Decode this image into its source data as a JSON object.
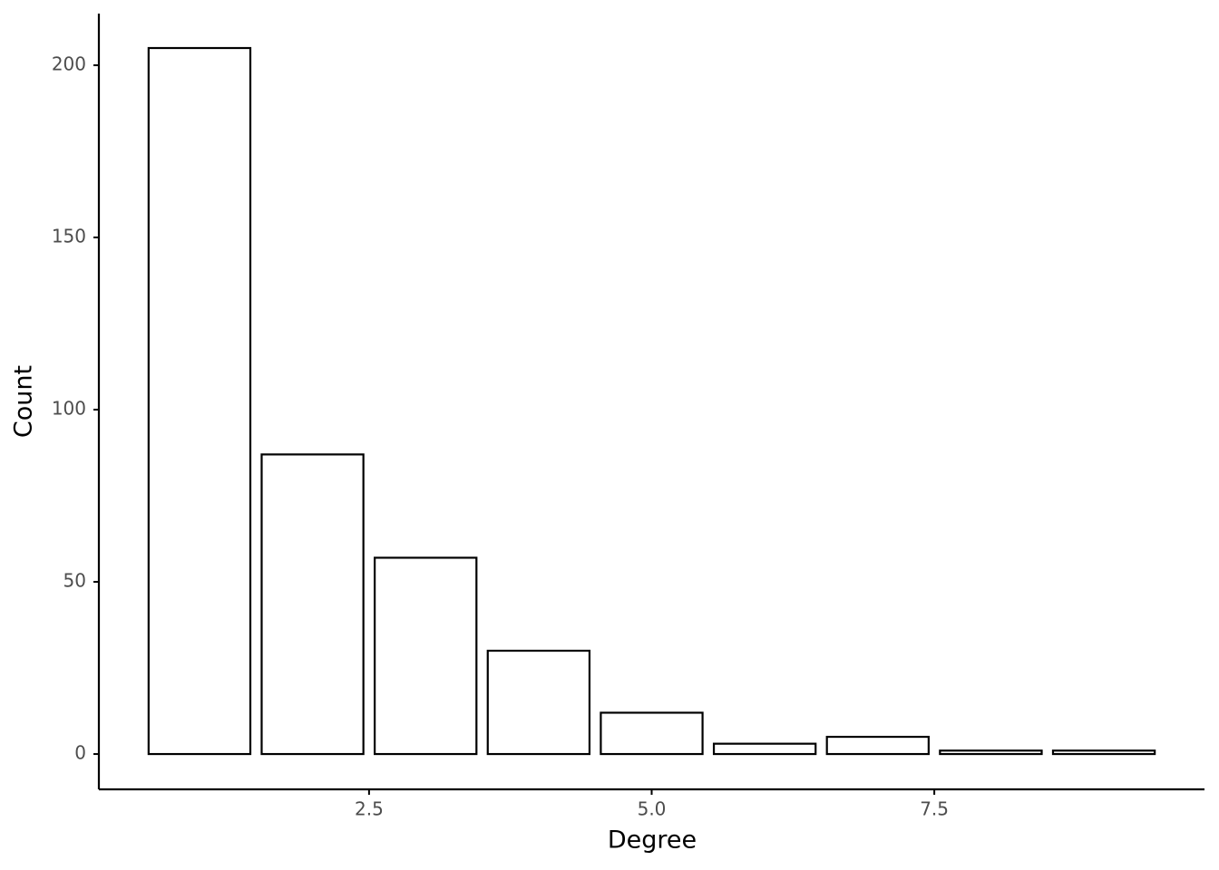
{
  "chart_data": {
    "type": "bar",
    "x_label": "Degree",
    "y_label": "Count",
    "x": [
      1,
      2,
      3,
      4,
      5,
      6,
      7,
      8,
      9
    ],
    "values": [
      205,
      87,
      57,
      30,
      12,
      3,
      5,
      1,
      1
    ],
    "color": "#ffffff",
    "edgecolor": "#000000",
    "xlim": [
      0.11,
      9.89
    ],
    "xticks": [
      2.5,
      {
        "value": 5,
        "label": "5.0"
      },
      7.5
    ],
    "ylim": [
      -10.25,
      215
    ],
    "yticks": [
      0,
      50,
      100,
      150,
      200
    ],
    "grid": false
  }
}
